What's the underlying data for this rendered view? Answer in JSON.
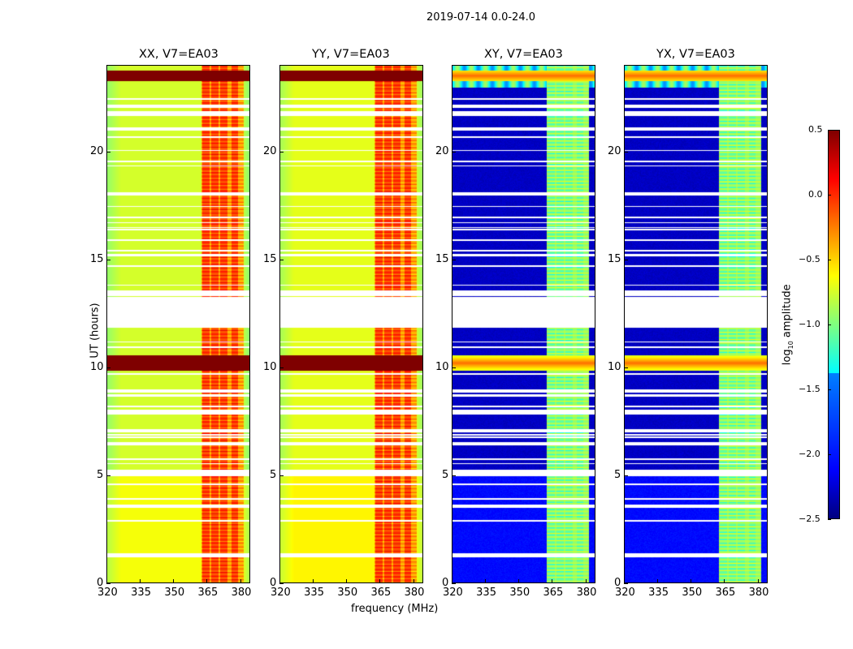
{
  "figure_title": "2019-07-14 0.0-24.0",
  "chart_data": [
    {
      "type": "heatmap",
      "title": "XX, V7=EA03",
      "pol": "parallel"
    },
    {
      "type": "heatmap",
      "title": "YY, V7=EA03",
      "pol": "parallel"
    },
    {
      "type": "heatmap",
      "title": "XY, V7=EA03",
      "pol": "cross"
    },
    {
      "type": "heatmap",
      "title": "YX, V7=EA03",
      "pol": "cross"
    }
  ],
  "axes": {
    "xlabel": "frequency (MHz)",
    "ylabel": "UT (hours)",
    "xlim": [
      320,
      384.5
    ],
    "ylim": [
      0,
      24
    ],
    "xticks": [
      "320",
      "335",
      "350",
      "365",
      "380"
    ],
    "xtick_values": [
      320,
      335,
      350,
      365,
      380
    ],
    "yticks": [
      "0",
      "5",
      "10",
      "15",
      "20"
    ],
    "ytick_values": [
      0,
      5,
      10,
      15,
      20
    ]
  },
  "features": {
    "rfi_band_MHz": [
      362,
      381
    ],
    "rfi_columns_MHz": [
      364,
      368,
      372,
      377
    ],
    "strong_rfi_hours": [
      [
        9.9,
        10.6
      ],
      [
        23.3,
        23.8
      ]
    ],
    "flagged_hours": [
      [
        11.9,
        13.3
      ],
      [
        13.45,
        13.6
      ],
      [
        6.45,
        6.6
      ],
      [
        5.1,
        5.3
      ],
      [
        21.0,
        21.15
      ],
      [
        21.7,
        21.9
      ],
      [
        18.1,
        18.15
      ],
      [
        3.55,
        3.62
      ]
    ]
  },
  "colorbar": {
    "label": "log10 amplitude",
    "label_main": "log",
    "label_sub": "10",
    "label_rest": " amplitude",
    "range": [
      -2.5,
      0.5
    ],
    "ticks": [
      "0.5",
      "0.0",
      "−0.5",
      "−1.0",
      "−1.5",
      "−2.0",
      "−2.5"
    ],
    "tick_values": [
      0.5,
      0,
      -0.5,
      -1,
      -1.5,
      -2,
      -2.5
    ],
    "colormap": "jet"
  }
}
